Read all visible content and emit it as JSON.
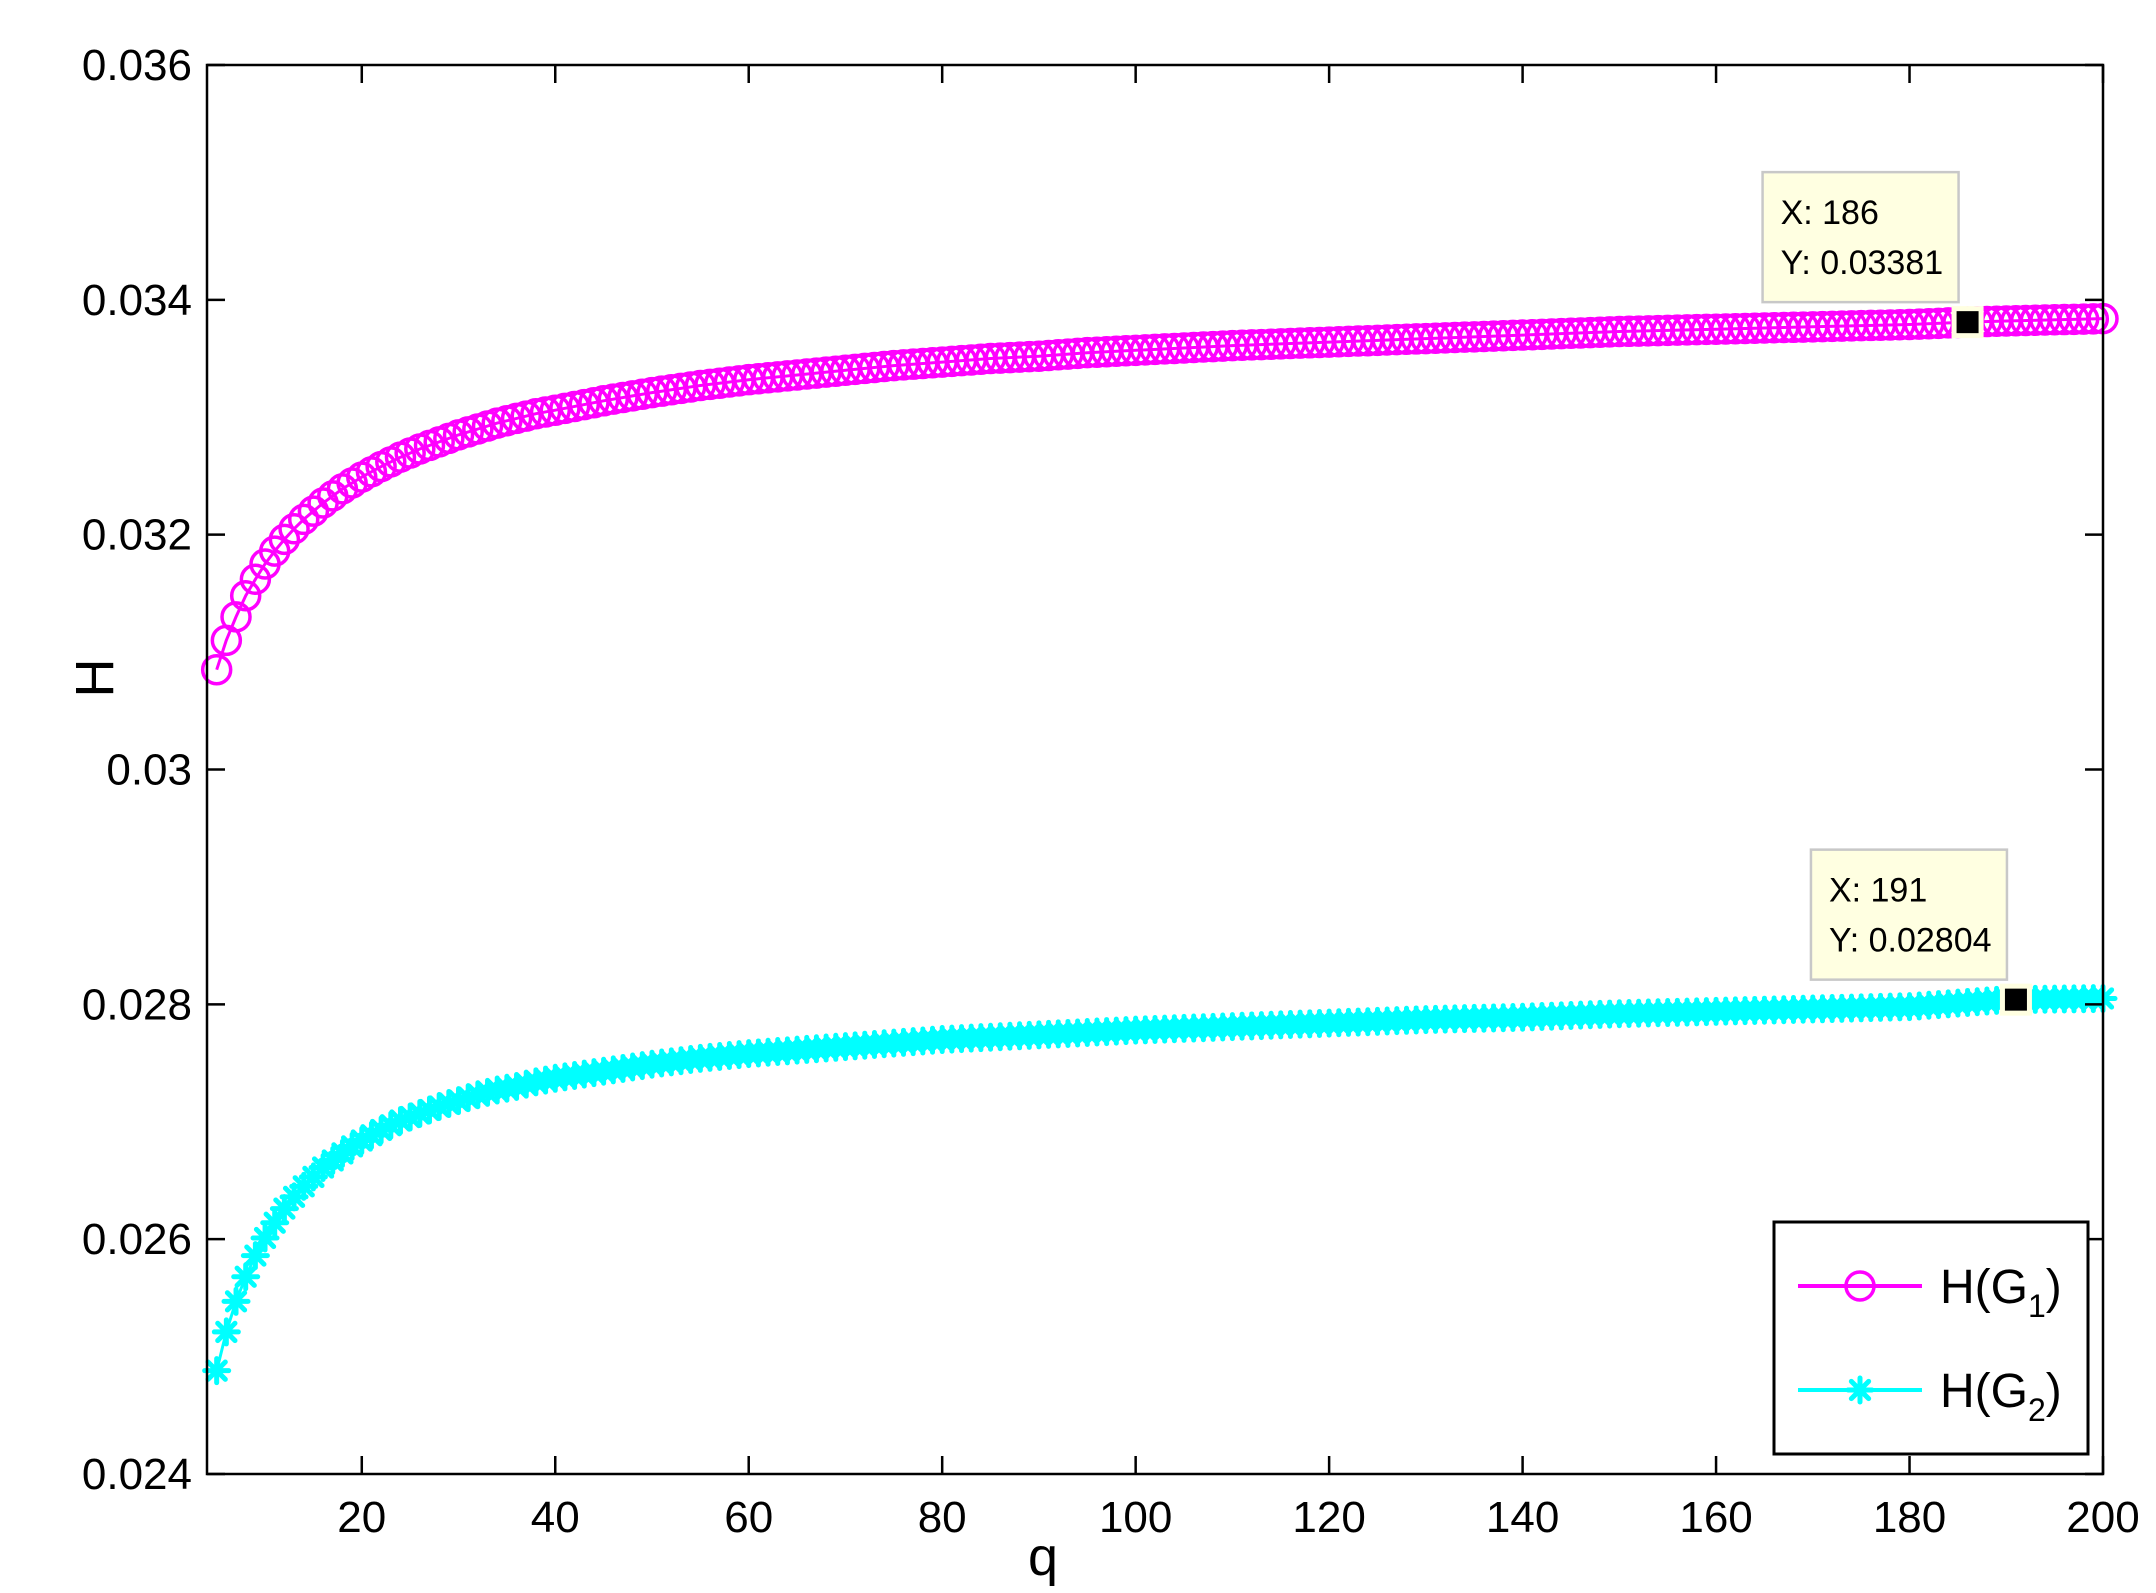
{
  "chart_data": {
    "type": "line",
    "xlabel": "q",
    "ylabel": "H",
    "xlim": [
      4,
      200
    ],
    "ylim": [
      0.024,
      0.036
    ],
    "xticks": [
      20,
      40,
      60,
      80,
      100,
      120,
      140,
      160,
      180,
      200
    ],
    "yticks": [
      0.024,
      0.026,
      0.028,
      0.03,
      0.032,
      0.034,
      0.036
    ],
    "xtick_labels": [
      "20",
      "40",
      "60",
      "80",
      "100",
      "120",
      "140",
      "160",
      "180",
      "200"
    ],
    "ytick_labels": [
      "0.024",
      "0.026",
      "0.028",
      "0.03",
      "0.032",
      "0.034",
      "0.036"
    ],
    "grid": false,
    "legend_position": "bottom-right",
    "series": [
      {
        "name_main": "H(G",
        "name_sub": "1",
        "name_tail": ")",
        "color": "#ff00ff",
        "marker": "circle",
        "x": [
          5,
          6,
          7,
          8,
          9,
          10,
          11,
          12,
          13,
          14,
          15,
          16,
          17,
          18,
          19,
          20,
          22,
          24,
          26,
          28,
          30,
          32,
          34,
          36,
          38,
          40,
          45,
          50,
          55,
          60,
          65,
          70,
          75,
          80,
          85,
          90,
          95,
          100,
          110,
          120,
          130,
          140,
          150,
          160,
          170,
          180,
          186,
          190,
          200
        ],
        "y": [
          0.03085,
          0.0311,
          0.0313,
          0.03148,
          0.03162,
          0.03175,
          0.03186,
          0.03196,
          0.03205,
          0.03213,
          0.0322,
          0.03227,
          0.03233,
          0.03239,
          0.03244,
          0.03249,
          0.03258,
          0.03266,
          0.03273,
          0.03279,
          0.03285,
          0.0329,
          0.03295,
          0.03299,
          0.03303,
          0.03306,
          0.03314,
          0.03321,
          0.03327,
          0.03332,
          0.03336,
          0.0334,
          0.03344,
          0.03347,
          0.0335,
          0.03352,
          0.03355,
          0.03357,
          0.03361,
          0.03364,
          0.03367,
          0.0337,
          0.03373,
          0.03375,
          0.03377,
          0.03379,
          0.03381,
          0.03382,
          0.03384
        ]
      },
      {
        "name_main": "H(G",
        "name_sub": "2",
        "name_tail": ")",
        "color": "#00ffff",
        "marker": "star",
        "x": [
          5,
          6,
          7,
          8,
          9,
          10,
          11,
          12,
          13,
          14,
          15,
          16,
          17,
          18,
          19,
          20,
          22,
          24,
          26,
          28,
          30,
          32,
          34,
          36,
          38,
          40,
          45,
          50,
          55,
          60,
          65,
          70,
          75,
          80,
          85,
          90,
          95,
          100,
          110,
          120,
          130,
          140,
          150,
          160,
          170,
          180,
          190,
          191,
          200
        ],
        "y": [
          0.02488,
          0.02521,
          0.02547,
          0.02568,
          0.02586,
          0.02601,
          0.02614,
          0.02626,
          0.02636,
          0.02645,
          0.02653,
          0.02661,
          0.02667,
          0.02673,
          0.02679,
          0.02684,
          0.02693,
          0.02701,
          0.02707,
          0.02713,
          0.02718,
          0.02723,
          0.02727,
          0.0273,
          0.02734,
          0.02737,
          0.02743,
          0.02749,
          0.02754,
          0.02758,
          0.02761,
          0.02764,
          0.02767,
          0.0277,
          0.02772,
          0.02774,
          0.02776,
          0.02778,
          0.02781,
          0.02784,
          0.02787,
          0.02789,
          0.02792,
          0.02794,
          0.02796,
          0.02798,
          0.02804,
          0.02804,
          0.02805
        ]
      }
    ],
    "datatips": [
      {
        "series": 0,
        "x": 186,
        "y": 0.03381,
        "label_x": "X: 186",
        "label_y": "Y: 0.03381"
      },
      {
        "series": 1,
        "x": 191,
        "y": 0.02804,
        "label_x": "X: 191",
        "label_y": "Y: 0.02804"
      }
    ]
  }
}
